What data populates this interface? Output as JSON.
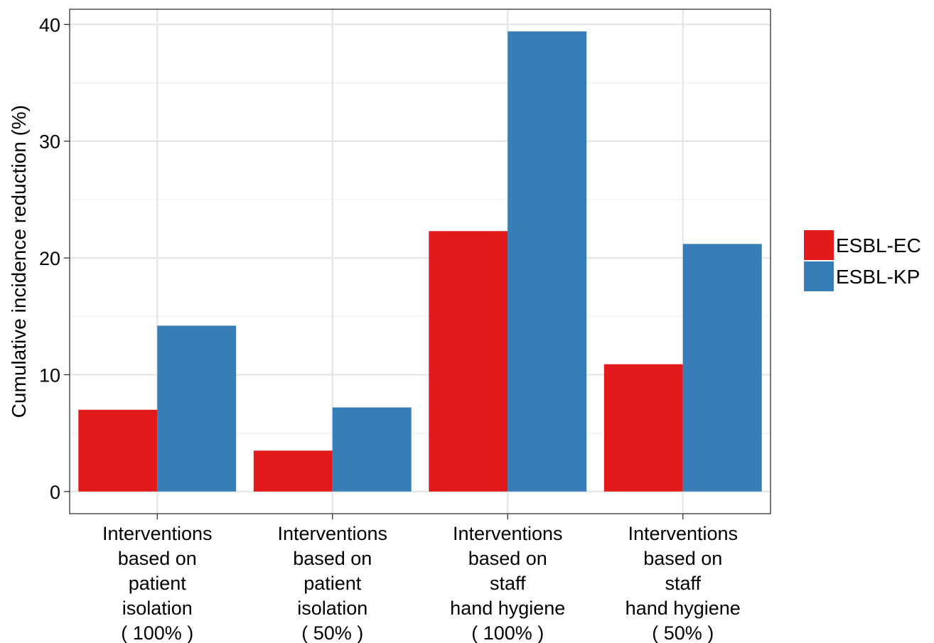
{
  "chart_data": {
    "type": "bar",
    "categories": [
      [
        "Interventions",
        "based on",
        "patient",
        "isolation",
        "( 100% )"
      ],
      [
        "Interventions",
        "based on",
        "patient",
        "isolation",
        "( 50% )"
      ],
      [
        "Interventions",
        "based on",
        "staff",
        "hand hygiene",
        "( 100% )"
      ],
      [
        "Interventions",
        "based on",
        "staff",
        "hand hygiene",
        "( 50% )"
      ]
    ],
    "series": [
      {
        "name": "ESBL-EC",
        "color": "#E31A1C",
        "values": [
          7.0,
          3.5,
          22.3,
          10.9
        ]
      },
      {
        "name": "ESBL-KP",
        "color": "#377EB8",
        "values": [
          14.2,
          7.2,
          39.4,
          21.2
        ]
      }
    ],
    "ylabel": "Cumulative incidence reduction (%)",
    "xlabel": "",
    "ylim": [
      -1.9,
      41.3
    ],
    "yticks": [
      0,
      10,
      20,
      30,
      40
    ],
    "grid": true,
    "legend_position": "right"
  }
}
